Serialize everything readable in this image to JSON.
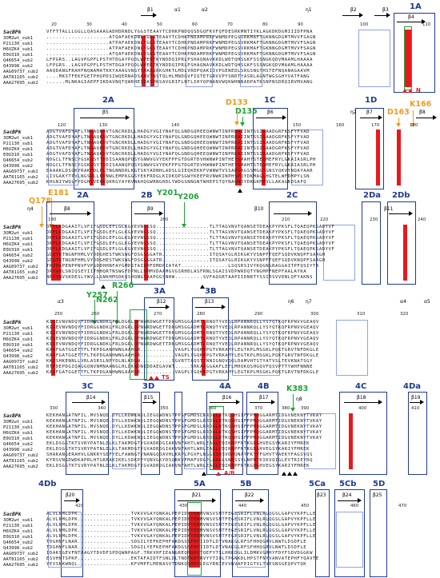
{
  "seq_labels": [
    "SacBPk",
    "3OM2wt_sub1",
    "P21130_sub1",
    "H6UZK4_sub1",
    "E0U310_sub1",
    "Q46654_sub2",
    "Q43998_sub2",
    "AAG09737_sub2",
    "AAT81165_sub2",
    "AAA27695_sub2"
  ],
  "blocks": [
    {
      "numbers": [
        "20",
        "30",
        "40",
        "50",
        "60",
        "70",
        "80",
        "90",
        "100",
        "110"
      ],
      "ss_labels": [
        "β1",
        "α1",
        "α2",
        "η1",
        "β2",
        "β3",
        "β4"
      ],
      "rows": [
        "VTFTTALLLGGLLQASAAAGADHDRNDLYGGSTEAAYTCDHKPNDQQSDGQFKVFQFDESRKMNTIYKLAGKDKDGMIIIDFPNA",
        "....................ATQAFAEKDNLYGGSTEAAYTCDHKPNDAMPRKFWNMDPEGSVRKMAFTGKNNGDGMTMVVFSAGN",
        "....................ATPAFAEKDNLYGGSTEAAYTCDHKPNDAMPRKFWNMDPEGSVRKMAFTGKNNGDGMTMVVFSAGN",
        "....................ATPAFAEKDNLYGGSTEAAYTCDHKPNDAMPRKFWNMDPEGSVRKMAFTGKNNGDGMTMVVFSAGN",
        "....................ATQAFAEKDNLYGGSTEAAYTCDHKPNDAMPRKFWNMDPEGSVRKMAFTGKNNGDGMTMVVFSAGN",
        "LFPGRS..LAGVPGPFLPSTHTDGAYPQDLWPERTKYNDDQIPRLPSHAQNAVKKDLWDTQHSGKFSSSNGKQDVMAAMLHAAAA",
        "LFPGRS..LAGVPGPFLPSTHTDGAYPQDLWPERTKYNDDQIPRLPSHAQNAVKKDLWDTQHSGKFSSSNGKQDVMAAMLHAAAA",
        "AAQDANGFRAHFNQWAMATKKYAAAGVNGYSHAAGRKGHKTLMDLVRDPQAKIIVPGENEDLSRGSNGTHSTEFNQANAGAAVM",
        "....MKSTFEKFGETPHQPDSIWQERNADSAHVTNSTQLHLMNDGVFIQTETGRVVPYSNDTYASRLAGNTWGSGHYVATFANG",
        "......MLNKAGIAEPFIKDAVNQTQWRHEIDAVHKSAVGRIFLNTLIHYQPNANVWQKWHNNADPATKSNPNSDRQIRVMVANG"
      ],
      "tags_blue": [
        "1A"
      ],
      "tags_red": [
        "N"
      ]
    },
    {
      "numbers": [
        "120",
        "130",
        "140",
        "150",
        "160",
        "170",
        "180"
      ],
      "ss_labels": [
        "β5",
        "β6",
        "η2",
        "β7",
        "β8"
      ],
      "rows": [
        "ADGTVAFDYAFLTNGAQKDVTGNCRKDLLHADGYVGIYNAFQLGNDGQHEEQWNWTINPRDAIINTSSIDAADGRFKSFYFVAD",
        "ADGTVAFDYAFLTNGAQKDVTGNCRKDLLHADGYVGIYNAFQLGNDGQHEEQWNWTINPRDAIINTSSIDAADGRFKSFYFVAD",
        "ADGTVAFDYAFLTNGAQKDVTGNCRKDLLHADGYVGIYNAFQLGNDGQHEEQWNWTINPRDAIINTSSIDAADGRFKSFYFVAD",
        "ADGTVAFDYAFLTNGAQKDVTGNCRKDLLHADGYVGIYNAFQLGNDGQHEEQWNWTINPRDAIINTSSIDAADGRFKSFYFVAD",
        "ADGTVAFDYAFLTNGAQKDVTGNCRKDLLHADGYVGIYNAFQLGNDGQHEEQWNWTINPRDAIINTSSIDAADGRFKSFYFVAD",
        "NDGCLTFNSCYGSKGSYTDDISAANQPQSYGNWVGVYEKFPFGTDGRTDVHWNWPINTHEYSMAHTSTEQMEFRYLGKAIASRLPH",
        "NDGCLTFNSCYGSKGSYTDDISAANQPQSYGNWVGVYEKFPFGTDGRTDVHWNWPINTHEYSMAHTSTEQMEFRYLGKAIASRLPH",
        "EAAAKLDSGKYRAKFDLPLTNGNNDRLKGTSKYADNHLADSLGIEQKEKKFVWNWTVSSADGAGSSMGGTGNSYQKVYNQAYAAR",
        "LIVGAKYTPVLNGSRLLNVNWLEMPKGGSYEKFRDGLKIDKQPSGWYKEEFRVNWKINPHSPQYDKMAGLHGTELWFDMPYLSN",
        "KHGNIYWQLFYDGHTVEHKQKRGYAYRVNAHQGWRNGRDLYWDGSNNGNTWHEPSTQYNAQNDYDKGKMPVLLAKAGRDSAFQ"
      ],
      "tags_blue": [
        "2A",
        "1C",
        "1D"
      ],
      "tags_orange": [
        "D133",
        "D163",
        "K166"
      ],
      "tags_green": [
        "D135"
      ]
    },
    {
      "numbers": [
        "190",
        "200",
        "210",
        "220",
        "230",
        "240"
      ],
      "ss_labels": [
        "η4",
        "β8",
        "β9",
        "β10",
        "β11"
      ],
      "rows": [
        "DFFLKDGAAITLVFIFGSDLEFLGLKGYEVNGSSQ.................TLTTAGVNVTQANSETDEAKPYPKSFLTQAEQPKSADYVF",
        "DRFLKDGAAITLVFIFGSDLEFLGLKGYEVNGSSQ.................TLTTAGVNVTQANSETDEAKPYPKSFLTQAEQPKSADYVF",
        "DRFLKDGAAITLVFIFGSDLEFLGLKGYEVNGSSQ.................TLTTAGVNVTQANSETDEAKPYPKSFLTQAEQPKSADYVF",
        "DRFLKDGAAITLVFIFGSDLEFLGLKGYEVNGSSQ.................TLTTAGVNVTQANSETDEAKPYPKSFLTQAEQPKSADYVF",
        "DRFLKDGAAITLVFIFGSDLEFLGLKGYEVNGSSQ.................TLTTAGVNVTQANSETDEAKPYPKSFLTQAEQPKSADYVF",
        "GDQTRTNGNFHMLVYDDGHESTWKSWGFDSGSGGATR...............ITQSAYGLRIKGKYVSNPFTQEFSQDVKNQPFSAAGH",
        "GDQTRTNGNFHMLVYDDGHESTWKSWGFDSGSGGATR...............ITQSAYGLRIKGKYVSNPFTQEFSQDVKNQPFSAAGH",
        "TRVHAPENPPNVFVPSDDHHNFAYGMDSTAIRHFDMDPIATAT...............LSQSRSIVYKQGNGRAGGAITPFQSIYTA",
        "DRYAHLSNIQSEYIITHHQRTNSWGFDPNLLHMMVDAAMGVGSRHDLASFRNLSGAISVDPWRDQTYNGMPFNEPFAALAYKA",
        "NRYSNVSKDESLYWVLLGNKHMSDKQSHQNGYAAPGGSNHW.........SVFAQGRTAAPIIDNRTYSSIRSVVDNLQFYAKNS"
      ],
      "tags_blue": [
        "2A",
        "2B",
        "2C",
        "2Da",
        "2Db"
      ],
      "tags_orange": [
        "Q178",
        "E181"
      ],
      "tags_green": [
        "Y201",
        "Y206"
      ]
    },
    {
      "numbers": [
        "250",
        "260",
        "270",
        "280",
        "290",
        "300",
        "310",
        "320"
      ],
      "ss_labels": [
        "α3",
        "β12",
        "β13",
        "η6",
        "η7",
        "α4",
        "α5"
      ],
      "rows": [
        "KIGEVNVNDQYFIDRGGNDKLFRLDGRLQPNNRDWGETTDNGMSGGADMTLRNQTYVEQLRPANNRQLLYSYQTKQFRPNVVGEAQV",
        "KIGEVNVNDQYFIDRGGNDKLFRLDGRLQPNNRDWGETTDNGMSGGADMTLRNQTYVEQLRPANNRQLLYSYQTKQFRPNVVGEAQV",
        "KIGEVNVNDQYFIDRGGNDKLFRLDGRLQPNNRDWGETTDNGMSGGADMTLRNQTYVEQLRPANNRQLLYSYQTKQFRPNVVGEAQV",
        "KIGEVNVNDQYFIDRGGNDKLFRLDGRLQPNNRDWGETTDNGMSGGADMTLRNQTYVEQLRPANNRQLLYSYQTKQFRPNVVGEAQV",
        "KIGEVNVNDQYFIDRGGNDKLFRLDGRLQPNNRDWGETTDNGMSGGADMTLRNQTYVEQLRPANNRQLLYSYQTKQFRPNVVGEAQV",
        "KAAFGATGGETTFLTKPDGANHWNGAAHGR...........VAGPLYGQKMPGTVRKAMYLEGTKPLMSGKLPQKTGRVTNFDKGLE",
        "KAAFGATGGETTFLTKPDGANHWNGAAHGR...........VAGPLYGQKMPGTVRKAMYLEGTKPLMSGKLPQKTGRVTNFDKGLE",
        "KKESHKENNLLVRLASRSLNPYDLNLKDGN..........SGVRTTAQSTTNNIGNQVQQLDAMVHTSTYATVSLTEVKNATSGY",
        "RTPDEPDGIQAGGQNVNMNAANGLHLDKNDNIDDAEGAVWT.....SRKAAGGAAFLETLMHQKQSHGQVFQSVPTTYWHFNNNE",
        "KAAFGATGGETTFLTKPDGANHWNGAAHGR...........VAGPLYGQKMPGTVRKAMYLEGTKPLMSGKLPQKTGRVTNFDKGLE"
      ],
      "tags_blue": [
        "3A",
        "3B"
      ],
      "tags_green": [
        "Y257",
        "N262",
        "R266"
      ],
      "tags_red": [
        "TS"
      ]
    },
    {
      "numbers": [
        "330",
        "340",
        "350",
        "360",
        "370",
        "380",
        "390",
        "400",
        "410"
      ],
      "ss_labels": [
        "β14",
        "β15",
        "β16",
        "β17",
        "η8",
        "β18",
        "β19"
      ],
      "rows": [
        "KEKHANGATNFIL.MVSNQD.DYLLKDWKNQLIEGQWDNSTPPSFGMDSLRRDGLDTKQSHSIFFPMQGGARMTIDGVNEKNYTVKAY",
        "KEKHANGATNFIL.MVSNQD.DYLLKDWKNQLIEGQWDNSTPPSFGMDSLRRDGLDTKQSHSIFFPMQGGARMTIDGVNEKNYTVKAY",
        "KEKHANGATNFIL.MVSNQD.DYLLKDWKNQLIEGQWDNSTPPSFGMDSLRRDGLDTKQSHSIFFPMQGGARMTIDGVNEKNYTVKAY",
        "KEKHANGATNFIL.MVSNQD.DYLLKDWKNQLIEGQWDNSTPPSFGMDSLRRDGLDTKQSHSIFFPMQGGARMTIDGVNEKNYTVKAY",
        "KEKHANGATNFIL.MVSNQD.DYLLKDWKNQLIEGQWDNSTPPSFGMDSLRRDGLDTKQSHSIFFPMQGGARMTIDGVNEKNYTVKAY",
        "EKLDSGGTKTSVRYPATNLDLKLTAKMDGTYGVADRDGIAKVNFAHTLWRLEAGLVDIKNPFNTKGDGHVEGSYKARIYFMREK",
        "EKLDSGGTKTSVRYPATNLDLKLTAKMDGTYGVADRDGIAKVNFAHTLWRLEAGLVDIKNPFNTKGDGHVEGSYKARIYFMREK",
        "SHAKANGERAHVLGNKRYSDFYELFAWNGTVNANGQDAVHLKRPLPGVFLNGGSSDSVDHQNAYFKYYFGHVTYAEKYFAGSVQS",
        "KYRSVNGDWDKAPRLHTGREAKIKELSDKPPYQNVGKYDSQRKVFMAFVDGPLAAALSNNSSYLNPNTKIKVQIGLEVTRIEYRQ",
        "EKLDSGGTKTSVRYPATNLDLKLTAKMDGTYGVADRDGIAKVNFAHTLWRLEAGLVDIKNPFNTKGDGHVEGSYKARIYFMREK"
      ],
      "tags_blue": [
        "3C",
        "3D",
        "4A",
        "4B",
        "4C",
        "4Da"
      ],
      "tags_green": [
        "K383"
      ],
      "tags_red": [
        "A/B"
      ]
    },
    {
      "numbers": [
        "420",
        "430",
        "440",
        "450",
        "460",
        "470"
      ],
      "ss_labels": [
        "β20",
        "β21",
        "β22",
        "β23",
        "β24",
        "β25"
      ],
      "rows": [
        "ALVLNMLDPK.................TVKVVGAYQNKALPEPIDYTERMVNSVSNTFEGESRIFLVNLRLQGSLGAPVYKPFLLE",
        "ALVLNMLDPK.................TVKVVGAYQNKALPEPIDYTERMVNSVSNTFEGESRIFLVNLRLQGSLGAPVYKPFLLE",
        "ALVLNMLDPK.................TVKVVGAYQNKALPEPIDYTERMVNSVSNTFEGESRIFLVNLRLQGSLGAPVYKPFLLE",
        "ALVLNMLDPK.................TVKVVGAYQNKALPEPIDYTERMVNSVSNTFEGESRIFLVNLRLQGSLGAPVYKPFLLE",
        "ALVLNMLDPK.................TVKVVGAYQNKALPEPIDYTERMVNSVSNTFEGESRIFLVNLRLQGSLGAPVYKPFLLE",
        "TDGHNFLNAR.................SDGILYEFKEPHFAKDGSSFHYIIDTLDTVNAKGLRFSFHHQGRVLNWTLDSDFLE",
        "TDGHNFLNAR.................SDGILYEFKEPHFAKDGSSFHYIIDTLDTVNAKGLRFSFHHQGRVLNWTLDSDFLE",
        "IDAKSGEVFNTAAGYTDVDFSPDQWNPAGF.TRKVHFIEANGREQMDHVTQEFYTSLHRKDGLILDMKVGRHYFDYFSDVDGGKW",
        "ESVHNTSPKP.................EKTAFAIDTFSNLDLTNDTKATRVYYTIQLTPGNKDLHPSTFNYVANVATEPHFYQAVTE",
        "YEVSNKWNQL.................KFVMPFLMENASVTDNKQGHRVLEGYRNIEVVNVAFEIGTVLTVESNSGEQPVTQK"
      ],
      "tags_blue": [
        "4Db",
        "5A",
        "5B",
        "5Ca",
        "5Cb",
        "5D"
      ]
    }
  ]
}
